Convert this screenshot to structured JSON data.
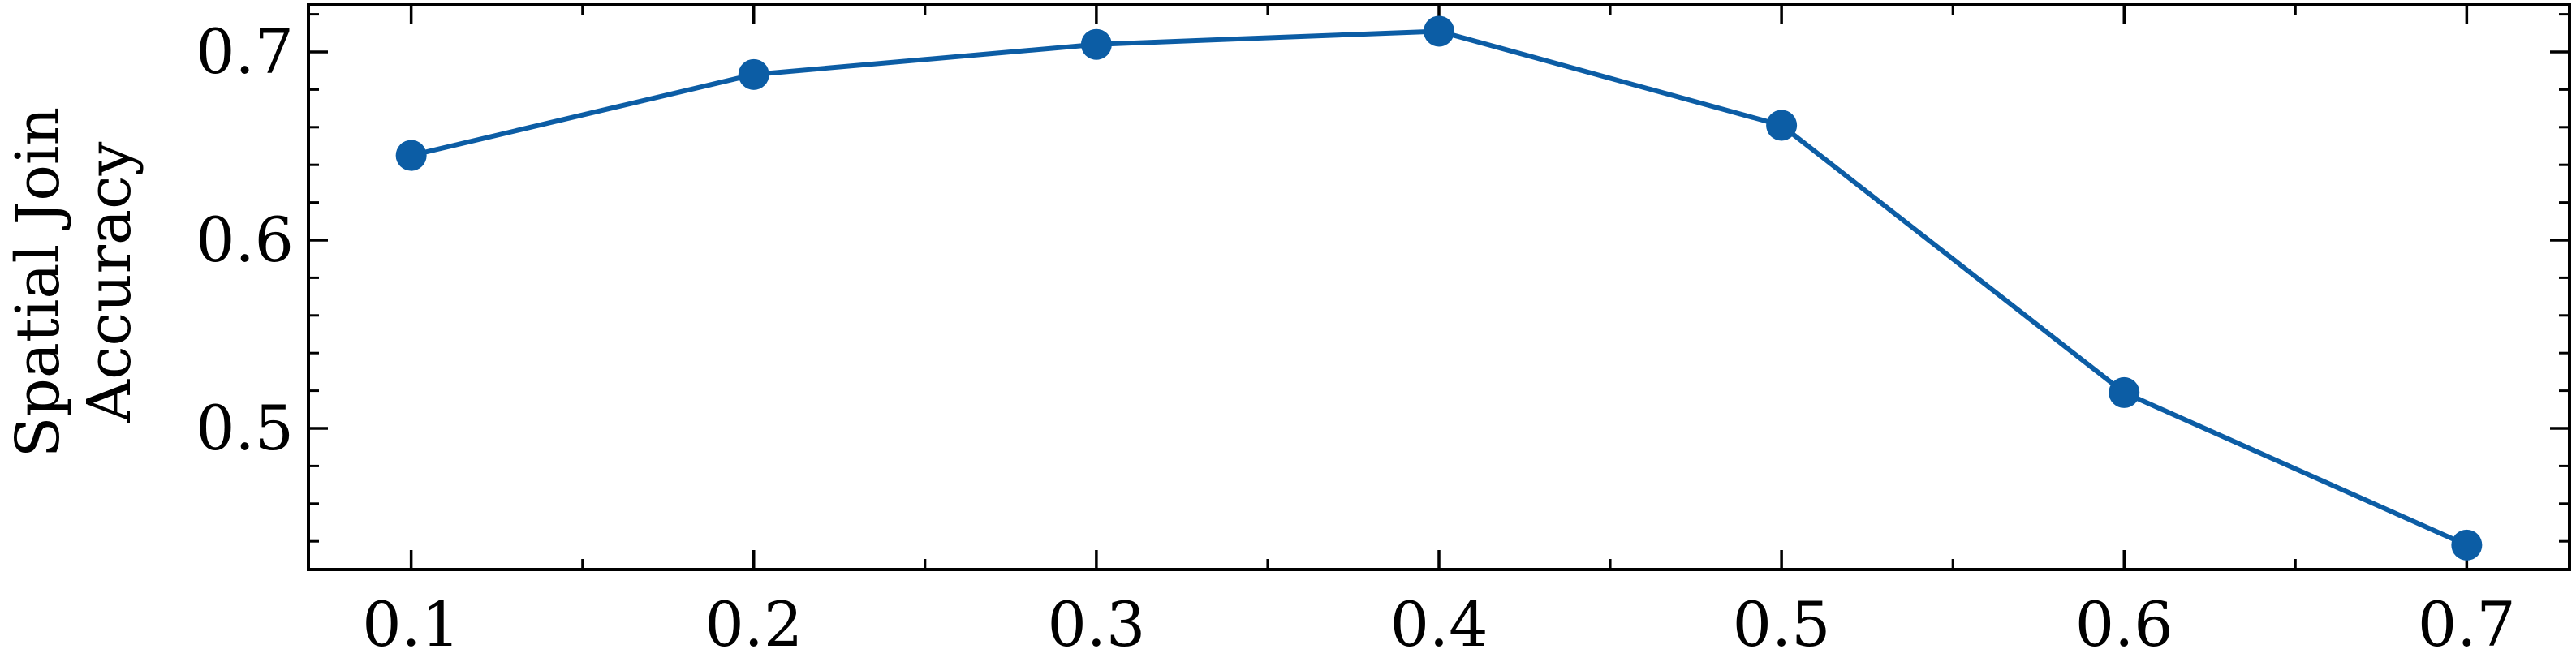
{
  "chart_data": {
    "type": "line",
    "title": "",
    "xlabel": "",
    "ylabel": [
      "Spatial Join",
      "Accuracy"
    ],
    "x": [
      0.1,
      0.2,
      0.3,
      0.4,
      0.5,
      0.6,
      0.7
    ],
    "series": [
      {
        "values": [
          0.645,
          0.688,
          0.704,
          0.711,
          0.661,
          0.519,
          0.438
        ]
      }
    ],
    "xlim": [
      0.07,
      0.73
    ],
    "ylim": [
      0.425,
      0.725
    ],
    "xticks": [
      "0.1",
      "0.2",
      "0.3",
      "0.4",
      "0.5",
      "0.6",
      "0.7"
    ],
    "yticks": [
      "0.5",
      "0.6",
      "0.7"
    ],
    "grid": false,
    "legend": "none",
    "colors": {
      "line": "#0C5DA5",
      "axis": "#000000"
    }
  }
}
